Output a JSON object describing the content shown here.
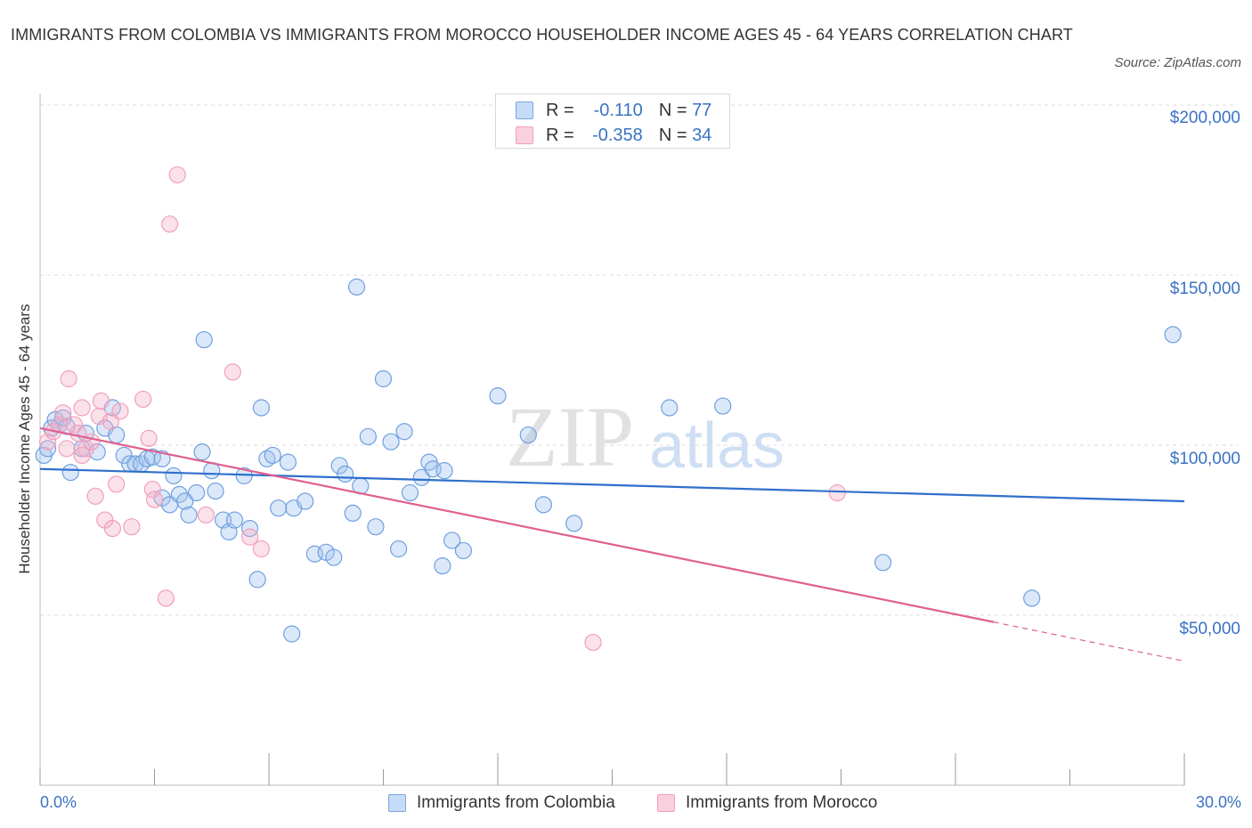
{
  "title": "IMMIGRANTS FROM COLOMBIA VS IMMIGRANTS FROM MOROCCO HOUSEHOLDER INCOME AGES 45 - 64 YEARS CORRELATION CHART",
  "source": "Source: ZipAtlas.com",
  "watermark": {
    "zip": "ZIP",
    "atlas": "atlas"
  },
  "legend": {
    "r_label": "R =",
    "n_label": "N =",
    "series": [
      {
        "r": "-0.110",
        "n": "77"
      },
      {
        "r": "-0.358",
        "n": "34"
      }
    ]
  },
  "chart_data": {
    "type": "scatter",
    "title": "IMMIGRANTS FROM COLOMBIA VS IMMIGRANTS FROM MOROCCO HOUSEHOLDER INCOME AGES 45 - 64 YEARS CORRELATION CHART",
    "xlabel": "",
    "ylabel": "Householder Income Ages 45 - 64 years",
    "xlim": [
      0,
      30
    ],
    "ylim": [
      0,
      200000
    ],
    "x_tick_labels": [
      "0.0%",
      "30.0%"
    ],
    "y_ticks": [
      50000,
      100000,
      150000,
      200000
    ],
    "y_tick_labels": [
      "$50,000",
      "$100,000",
      "$150,000",
      "$200,000"
    ],
    "grid": true,
    "legend_position": "top-center",
    "series": [
      {
        "name": "Immigrants from Colombia",
        "color": "#6fa0e0",
        "trend": {
          "x": [
            0,
            30
          ],
          "y": [
            93000,
            83500
          ],
          "color": "#2f6fcc"
        },
        "points": [
          [
            0.1,
            97000
          ],
          [
            0.2,
            99000
          ],
          [
            0.3,
            105000
          ],
          [
            0.4,
            107500
          ],
          [
            0.5,
            106000
          ],
          [
            0.6,
            108000
          ],
          [
            0.7,
            105500
          ],
          [
            0.8,
            92000
          ],
          [
            1.1,
            99000
          ],
          [
            1.2,
            103500
          ],
          [
            1.5,
            98000
          ],
          [
            1.7,
            105000
          ],
          [
            1.9,
            111000
          ],
          [
            2.0,
            103000
          ],
          [
            2.2,
            97000
          ],
          [
            2.35,
            94500
          ],
          [
            2.5,
            94500
          ],
          [
            2.65,
            94500
          ],
          [
            2.8,
            96000
          ],
          [
            2.95,
            96500
          ],
          [
            3.2,
            96000
          ],
          [
            3.2,
            84500
          ],
          [
            3.4,
            82500
          ],
          [
            3.5,
            91000
          ],
          [
            3.65,
            85500
          ],
          [
            3.8,
            83500
          ],
          [
            3.9,
            79500
          ],
          [
            4.1,
            86000
          ],
          [
            4.25,
            98000
          ],
          [
            4.3,
            131000
          ],
          [
            4.5,
            92500
          ],
          [
            4.6,
            86500
          ],
          [
            4.8,
            78000
          ],
          [
            4.95,
            74500
          ],
          [
            5.1,
            78000
          ],
          [
            5.35,
            91000
          ],
          [
            5.5,
            75500
          ],
          [
            5.7,
            60500
          ],
          [
            5.8,
            111000
          ],
          [
            5.95,
            96000
          ],
          [
            6.1,
            97000
          ],
          [
            6.25,
            81500
          ],
          [
            6.5,
            95000
          ],
          [
            6.6,
            44500
          ],
          [
            6.65,
            81500
          ],
          [
            6.95,
            83500
          ],
          [
            7.2,
            68000
          ],
          [
            7.5,
            68500
          ],
          [
            7.7,
            67000
          ],
          [
            7.85,
            94000
          ],
          [
            8.0,
            91500
          ],
          [
            8.2,
            80000
          ],
          [
            8.4,
            88000
          ],
          [
            8.3,
            146500
          ],
          [
            8.6,
            102500
          ],
          [
            8.8,
            76000
          ],
          [
            9.0,
            119500
          ],
          [
            9.2,
            101000
          ],
          [
            9.4,
            69500
          ],
          [
            9.55,
            104000
          ],
          [
            9.7,
            86000
          ],
          [
            10.0,
            90500
          ],
          [
            10.2,
            95000
          ],
          [
            10.3,
            93000
          ],
          [
            10.55,
            64500
          ],
          [
            10.6,
            92500
          ],
          [
            10.8,
            72000
          ],
          [
            11.1,
            69000
          ],
          [
            12.0,
            114500
          ],
          [
            12.8,
            103000
          ],
          [
            13.2,
            82500
          ],
          [
            14.0,
            77000
          ],
          [
            16.5,
            111000
          ],
          [
            17.9,
            111500
          ],
          [
            22.1,
            65500
          ],
          [
            26.0,
            55000
          ],
          [
            29.7,
            132500
          ]
        ]
      },
      {
        "name": "Immigrants from Morocco",
        "color": "#f0a0bc",
        "trend": {
          "x": [
            0,
            25
          ],
          "y": [
            105000,
            48000
          ],
          "dash_to": [
            30,
            36500
          ],
          "color": "#e0608f"
        },
        "points": [
          [
            0.2,
            101000
          ],
          [
            0.35,
            104000
          ],
          [
            0.5,
            106000
          ],
          [
            0.6,
            109500
          ],
          [
            0.7,
            99000
          ],
          [
            0.75,
            119500
          ],
          [
            0.9,
            106000
          ],
          [
            1.0,
            103500
          ],
          [
            1.1,
            97000
          ],
          [
            1.1,
            111000
          ],
          [
            1.2,
            99000
          ],
          [
            1.35,
            101000
          ],
          [
            1.45,
            85000
          ],
          [
            1.55,
            108500
          ],
          [
            1.6,
            113000
          ],
          [
            1.7,
            78000
          ],
          [
            1.85,
            107000
          ],
          [
            1.9,
            75500
          ],
          [
            2.0,
            88500
          ],
          [
            2.1,
            110000
          ],
          [
            2.4,
            76000
          ],
          [
            2.7,
            113500
          ],
          [
            2.85,
            102000
          ],
          [
            2.95,
            87000
          ],
          [
            3.0,
            84000
          ],
          [
            3.3,
            55000
          ],
          [
            3.4,
            165000
          ],
          [
            3.6,
            179500
          ],
          [
            4.35,
            79500
          ],
          [
            5.05,
            121500
          ],
          [
            5.5,
            73000
          ],
          [
            5.8,
            69500
          ],
          [
            14.5,
            42000
          ],
          [
            20.9,
            86000
          ]
        ]
      }
    ]
  }
}
